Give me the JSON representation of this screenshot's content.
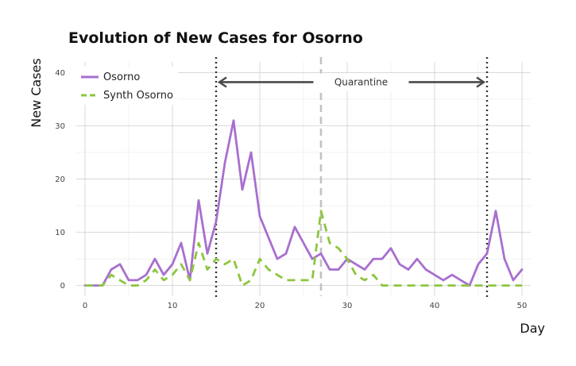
{
  "chart_data": {
    "type": "line",
    "title": "Evolution of New Cases for Osorno",
    "xlabel": "Day",
    "ylabel": "New Cases",
    "xlim": [
      -1,
      51
    ],
    "ylim": [
      -2,
      42
    ],
    "xticks": [
      0,
      10,
      20,
      30,
      40,
      50
    ],
    "yticks": [
      0,
      10,
      20,
      30,
      40
    ],
    "grid": true,
    "legend_position": "top-left",
    "series": [
      {
        "name": "Osorno",
        "color": "#a86fcf",
        "style": "solid",
        "x": [
          0,
          1,
          2,
          3,
          4,
          5,
          6,
          7,
          8,
          9,
          10,
          11,
          12,
          13,
          14,
          15,
          16,
          17,
          18,
          19,
          20,
          21,
          22,
          23,
          24,
          25,
          26,
          27,
          28,
          29,
          30,
          31,
          32,
          33,
          34,
          35,
          36,
          37,
          38,
          39,
          40,
          41,
          42,
          43,
          44,
          45,
          46,
          47,
          48,
          49,
          50
        ],
        "values": [
          0,
          0,
          0,
          3,
          4,
          1,
          1,
          2,
          5,
          2,
          4,
          8,
          1,
          16,
          6,
          12,
          23,
          31,
          18,
          25,
          13,
          9,
          5,
          6,
          11,
          8,
          5,
          6,
          3,
          3,
          5,
          4,
          3,
          5,
          5,
          7,
          4,
          3,
          5,
          3,
          2,
          1,
          2,
          1,
          0,
          4,
          6,
          14,
          5,
          1,
          3
        ]
      },
      {
        "name": "Synth Osorno",
        "color": "#8dc63f",
        "style": "dashed",
        "x": [
          0,
          1,
          2,
          3,
          4,
          5,
          6,
          7,
          8,
          9,
          10,
          11,
          12,
          13,
          14,
          15,
          16,
          17,
          18,
          19,
          20,
          21,
          22,
          23,
          24,
          25,
          26,
          27,
          28,
          29,
          30,
          31,
          32,
          33,
          34,
          35,
          36,
          37,
          38,
          39,
          40,
          41,
          42,
          43,
          44,
          45,
          46,
          47,
          48,
          49,
          50
        ],
        "values": [
          0,
          0,
          0,
          2,
          1,
          0,
          0,
          1,
          3,
          1,
          2,
          4,
          1,
          8,
          3,
          5,
          4,
          5,
          0,
          1,
          5,
          3,
          2,
          1,
          1,
          1,
          1,
          14,
          8,
          7,
          5,
          2,
          1,
          2,
          0,
          0,
          0,
          0,
          0,
          0,
          0,
          0,
          0,
          0,
          0,
          0,
          0,
          0,
          0,
          0,
          0
        ]
      }
    ],
    "annotations": {
      "quarantine_label": "Quarantine",
      "quarantine_start": 15,
      "quarantine_end": 46,
      "intervention_day": 27
    }
  }
}
